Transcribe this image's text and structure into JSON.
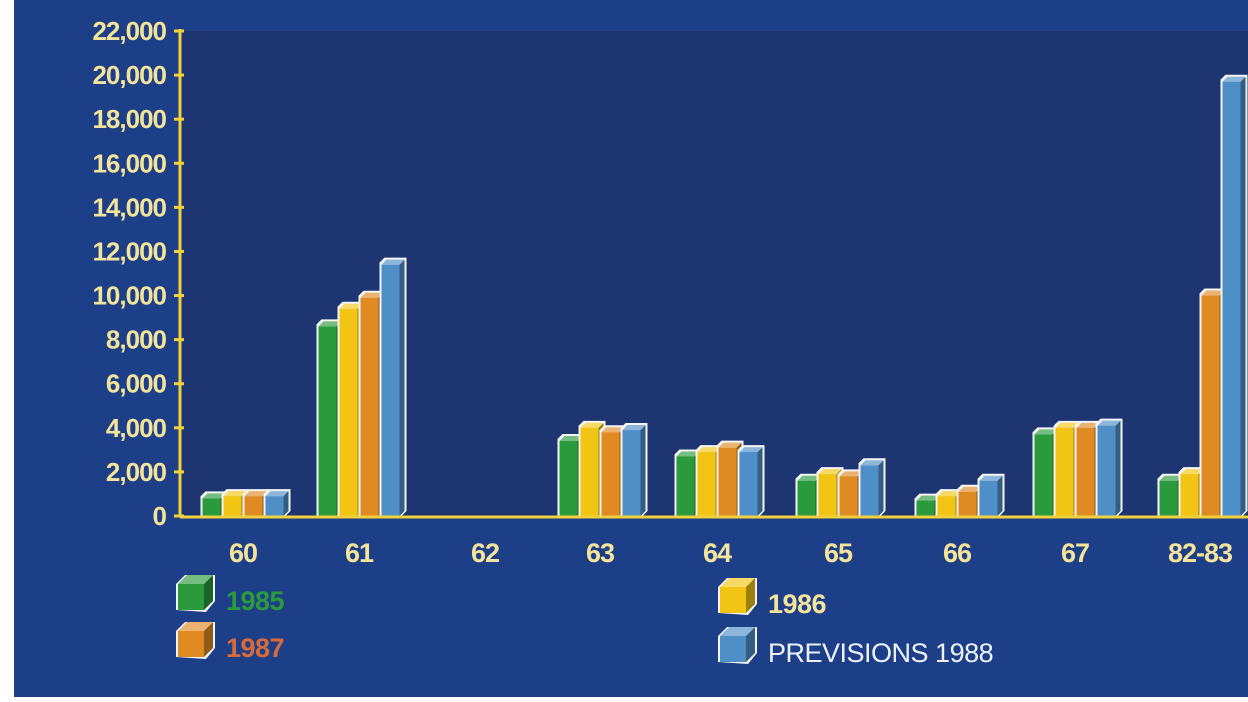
{
  "chart_data": {
    "type": "bar",
    "title": "",
    "xlabel": "",
    "ylabel": "",
    "categories": [
      "60",
      "61",
      "62",
      "63",
      "64",
      "65",
      "66",
      "67",
      "82-83"
    ],
    "ylim": [
      0,
      22000
    ],
    "yticks": [
      "0",
      "2,000",
      "4,000",
      "6,000",
      "8,000",
      "10,000",
      "12,000",
      "14,000",
      "16,000",
      "18,000",
      "20,000",
      "22,000"
    ],
    "grid": false,
    "legend_position": "bottom",
    "series": [
      {
        "name": "1985",
        "values": [
          800,
          8600,
          0,
          3400,
          2700,
          1600,
          700,
          3700,
          1600
        ]
      },
      {
        "name": "1986",
        "values": [
          900,
          9400,
          0,
          4000,
          2900,
          1900,
          900,
          4000,
          1900
        ]
      },
      {
        "name": "1987",
        "values": [
          900,
          9900,
          0,
          3800,
          3100,
          1800,
          1100,
          4000,
          10000
        ]
      },
      {
        "name": "PREVISIONS 1988",
        "values": [
          900,
          11400,
          0,
          3900,
          2900,
          2300,
          1600,
          4100,
          19700
        ]
      }
    ]
  },
  "colors": {
    "background": "#1c3f88",
    "plot_background": "#1d3671",
    "axis": "#f2d23a",
    "tick_text": "#f3e39b",
    "series": [
      "#2a9a3c",
      "#f2c413",
      "#e08a24",
      "#4f8fc8"
    ],
    "legend_text": [
      "#2a9a3c",
      "#f3e39b",
      "#d86a3c",
      "#eef2ff"
    ]
  }
}
